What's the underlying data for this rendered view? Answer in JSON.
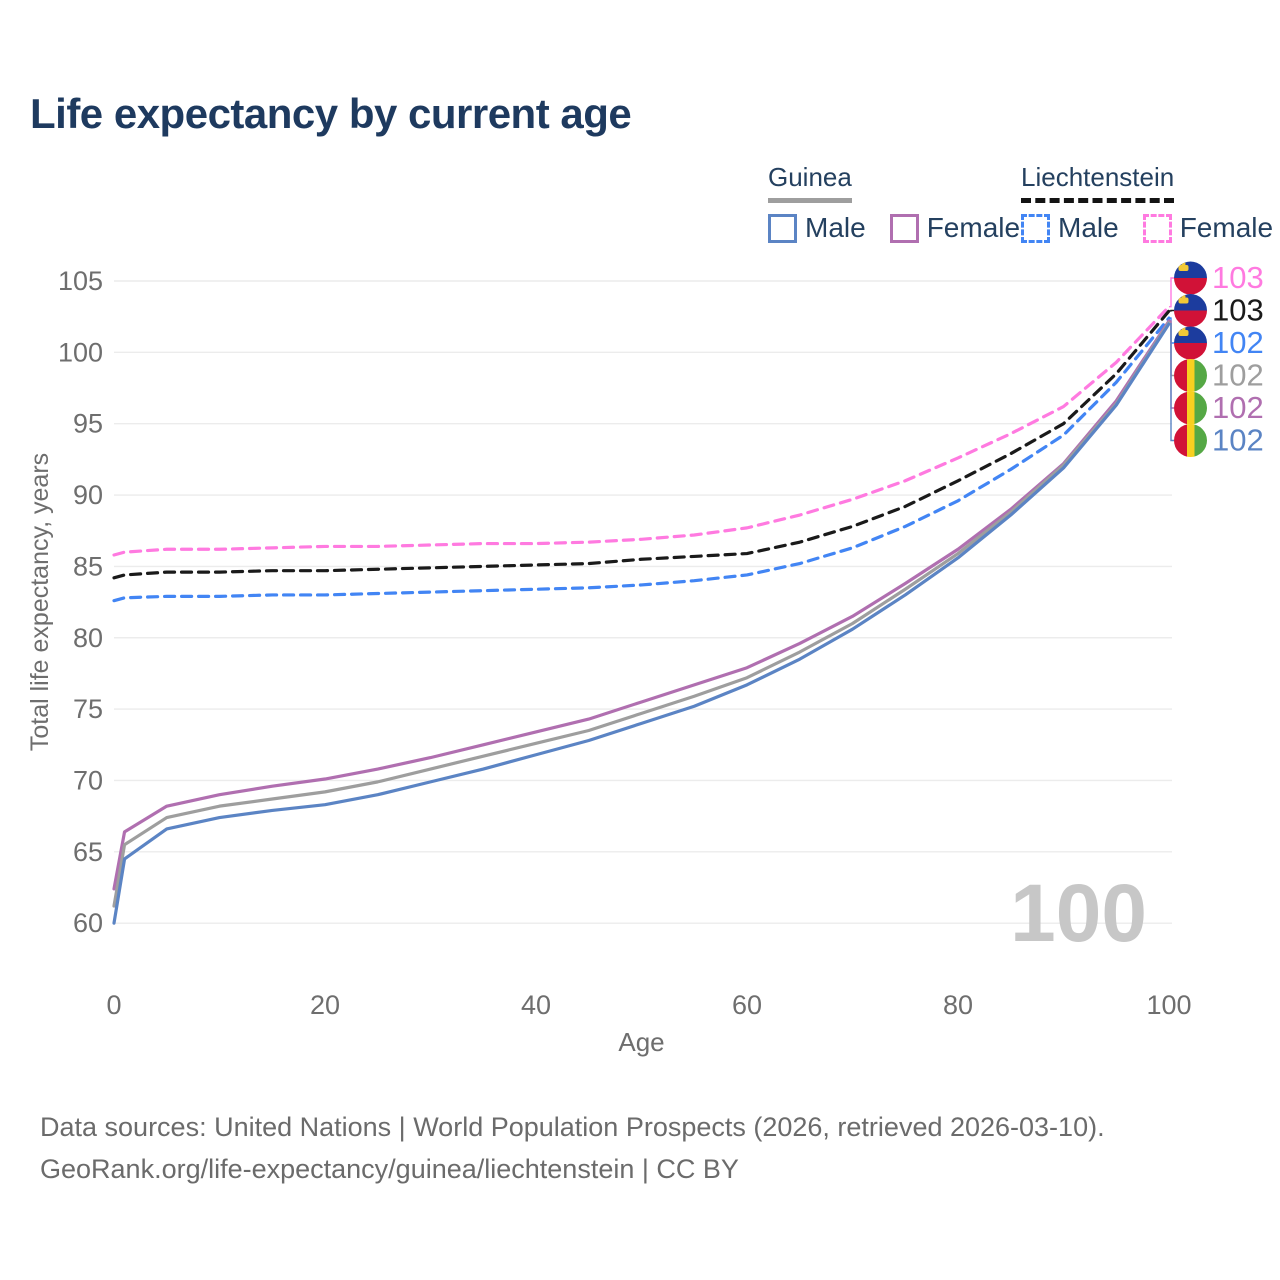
{
  "header": {
    "title": "Life expectancy by current age"
  },
  "legend": {
    "groups": [
      {
        "label": "Guinea",
        "underline": {
          "style": "solid",
          "color": "#9e9e9e"
        },
        "items": [
          {
            "label": "Male",
            "style": "solid",
            "color": "#5b84c4"
          },
          {
            "label": "Female",
            "style": "solid",
            "color": "#b06fb0"
          }
        ]
      },
      {
        "label": "Liechtenstein",
        "underline": {
          "style": "dashed",
          "color": "#141414"
        },
        "items": [
          {
            "label": "Male",
            "style": "dashed",
            "color": "#4285f4"
          },
          {
            "label": "Female",
            "style": "dashed",
            "color": "#ff7ae0"
          }
        ]
      }
    ]
  },
  "chart_data": {
    "type": "line",
    "title": "Life expectancy by current age",
    "xlabel": "Age",
    "ylabel": "Total life expectancy, years",
    "xlim": [
      0,
      100
    ],
    "ylim": [
      60,
      105
    ],
    "xticks": [
      0,
      20,
      40,
      60,
      80,
      100
    ],
    "yticks": [
      60,
      65,
      70,
      75,
      80,
      85,
      90,
      95,
      100,
      105
    ],
    "grid": "horizontal",
    "age_watermark": "100",
    "x": [
      0,
      1,
      5,
      10,
      15,
      20,
      25,
      30,
      35,
      40,
      45,
      50,
      55,
      60,
      65,
      70,
      75,
      80,
      85,
      90,
      95,
      100
    ],
    "series": [
      {
        "name": "Liechtenstein Female",
        "country": "Liechtenstein",
        "sex": "Female",
        "style": "dashed",
        "color": "#ff7ae0",
        "values": [
          85.8,
          86.0,
          86.2,
          86.2,
          86.3,
          86.4,
          86.4,
          86.5,
          86.6,
          86.6,
          86.7,
          86.9,
          87.2,
          87.7,
          88.6,
          89.7,
          91.0,
          92.6,
          94.3,
          96.2,
          99.3,
          103.2
        ]
      },
      {
        "name": "Liechtenstein (both sexes)",
        "country": "Liechtenstein",
        "sex": "All",
        "style": "dashed",
        "color": "#1a1a1a",
        "values": [
          84.2,
          84.4,
          84.6,
          84.6,
          84.7,
          84.7,
          84.8,
          84.9,
          85.0,
          85.1,
          85.2,
          85.5,
          85.7,
          85.9,
          86.7,
          87.8,
          89.2,
          91.0,
          92.9,
          95.0,
          98.5,
          102.9
        ]
      },
      {
        "name": "Liechtenstein Male",
        "country": "Liechtenstein",
        "sex": "Male",
        "style": "dashed",
        "color": "#4285f4",
        "values": [
          82.6,
          82.8,
          82.9,
          82.9,
          83.0,
          83.0,
          83.1,
          83.2,
          83.3,
          83.4,
          83.5,
          83.7,
          84.0,
          84.4,
          85.2,
          86.3,
          87.8,
          89.6,
          91.8,
          94.2,
          97.9,
          102.4
        ]
      },
      {
        "name": "Guinea Female",
        "country": "Guinea",
        "sex": "Female",
        "style": "solid",
        "color": "#b06fb0",
        "values": [
          62.4,
          66.4,
          68.2,
          69.0,
          69.6,
          70.1,
          70.8,
          71.6,
          72.5,
          73.4,
          74.3,
          75.5,
          76.7,
          77.9,
          79.6,
          81.5,
          83.8,
          86.2,
          89.0,
          92.2,
          96.6,
          102.2
        ]
      },
      {
        "name": "Guinea (both sexes)",
        "country": "Guinea",
        "sex": "All",
        "style": "solid",
        "color": "#9e9e9e",
        "values": [
          61.2,
          65.5,
          67.4,
          68.2,
          68.7,
          69.2,
          69.9,
          70.8,
          71.7,
          72.6,
          73.5,
          74.7,
          75.9,
          77.2,
          79.0,
          81.0,
          83.4,
          85.9,
          88.8,
          92.1,
          96.4,
          102.1
        ]
      },
      {
        "name": "Guinea Male",
        "country": "Guinea",
        "sex": "Male",
        "style": "solid",
        "color": "#5b84c4",
        "values": [
          60.0,
          64.5,
          66.6,
          67.4,
          67.9,
          68.3,
          69.0,
          69.9,
          70.8,
          71.8,
          72.8,
          74.0,
          75.2,
          76.7,
          78.5,
          80.6,
          83.0,
          85.6,
          88.6,
          91.9,
          96.3,
          102.0
        ]
      }
    ],
    "end_labels": [
      {
        "flag": "liechtenstein",
        "series_index": 0,
        "value": "103",
        "color": "#ff7ae0"
      },
      {
        "flag": "liechtenstein",
        "series_index": 1,
        "value": "103",
        "color": "#1a1a1a"
      },
      {
        "flag": "liechtenstein",
        "series_index": 2,
        "value": "102",
        "color": "#4285f4"
      },
      {
        "flag": "guinea",
        "series_index": 4,
        "value": "102",
        "color": "#9e9e9e"
      },
      {
        "flag": "guinea",
        "series_index": 3,
        "value": "102",
        "color": "#b06fb0"
      },
      {
        "flag": "guinea",
        "series_index": 5,
        "value": "102",
        "color": "#5b84c4"
      }
    ]
  },
  "colors": {
    "title_text": "#1e3a5f",
    "axis_text": "#6e6e6e",
    "gridline": "#ececec",
    "watermark": "#c7c7c7",
    "footer_text": "#6b6b6b"
  },
  "footer": {
    "line1": "Data sources: United Nations | World Population Prospects (2026, retrieved 2026-03-10).",
    "line2": "GeoRank.org/life-expectancy/guinea/liechtenstein | CC BY"
  }
}
